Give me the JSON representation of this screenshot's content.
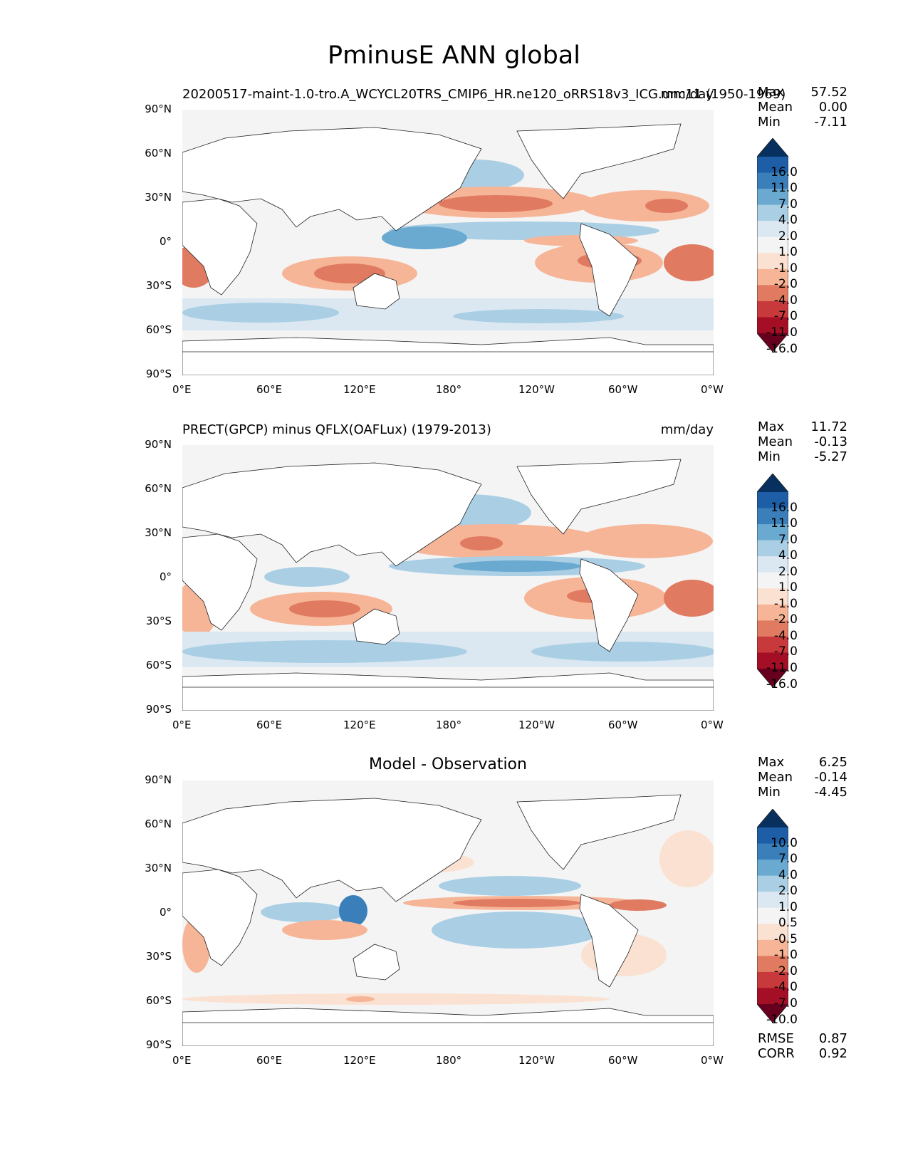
{
  "title": "PminusE ANN global",
  "colors": {
    "cmap": [
      "#67001f",
      "#a50f26",
      "#c7393b",
      "#e07b61",
      "#f6b597",
      "#fbe1d1",
      "#f4f4f4",
      "#dbe8f1",
      "#aacfe5",
      "#6aaad1",
      "#3b7fba",
      "#1d5ea6",
      "#08305f"
    ],
    "land": "#ffffff",
    "no_data": "#f4f4f4"
  },
  "axes": {
    "x_ticks": [
      "0°E",
      "60°E",
      "120°E",
      "180°",
      "120°W",
      "60°W",
      "0°W"
    ],
    "y_ticks": [
      "90°N",
      "60°N",
      "30°N",
      "0°",
      "30°S",
      "60°S",
      "90°S"
    ]
  },
  "panels": [
    {
      "title_left": "20200517-maint-1.0-tro.A_WCYCL20TRS_CMIP6_HR.ne120_oRRS18v3_ICG.unc11 (1950-1969)",
      "units": "mm/day",
      "stats": [
        {
          "label": "Max",
          "value": "57.52"
        },
        {
          "label": "Mean",
          "value": "0.00"
        },
        {
          "label": "Min",
          "value": "-7.11"
        }
      ],
      "colorbar_ticks": [
        "16.0",
        "11.0",
        "7.0",
        "4.0",
        "2.0",
        "1.0",
        "-1.0",
        "-2.0",
        "-4.0",
        "-7.0",
        "-11.0",
        "-16.0"
      ]
    },
    {
      "title_left": "PRECT(GPCP) minus QFLX(OAFLux) (1979-2013)",
      "units": "mm/day",
      "stats": [
        {
          "label": "Max",
          "value": "11.72"
        },
        {
          "label": "Mean",
          "value": "-0.13"
        },
        {
          "label": "Min",
          "value": "-5.27"
        }
      ],
      "colorbar_ticks": [
        "16.0",
        "11.0",
        "7.0",
        "4.0",
        "2.0",
        "1.0",
        "-1.0",
        "-2.0",
        "-4.0",
        "-7.0",
        "-11.0",
        "-16.0"
      ]
    },
    {
      "title_center": "Model - Observation",
      "stats": [
        {
          "label": "Max",
          "value": "6.25"
        },
        {
          "label": "Mean",
          "value": "-0.14"
        },
        {
          "label": "Min",
          "value": "-4.45"
        }
      ],
      "colorbar_ticks": [
        "10.0",
        "7.0",
        "4.0",
        "2.0",
        "1.0",
        "0.5",
        "-0.5",
        "-1.0",
        "-2.0",
        "-4.0",
        "-7.0",
        "-10.0"
      ],
      "footer_stats": [
        {
          "label": "RMSE",
          "value": "0.87"
        },
        {
          "label": "CORR",
          "value": "0.92"
        }
      ]
    }
  ]
}
